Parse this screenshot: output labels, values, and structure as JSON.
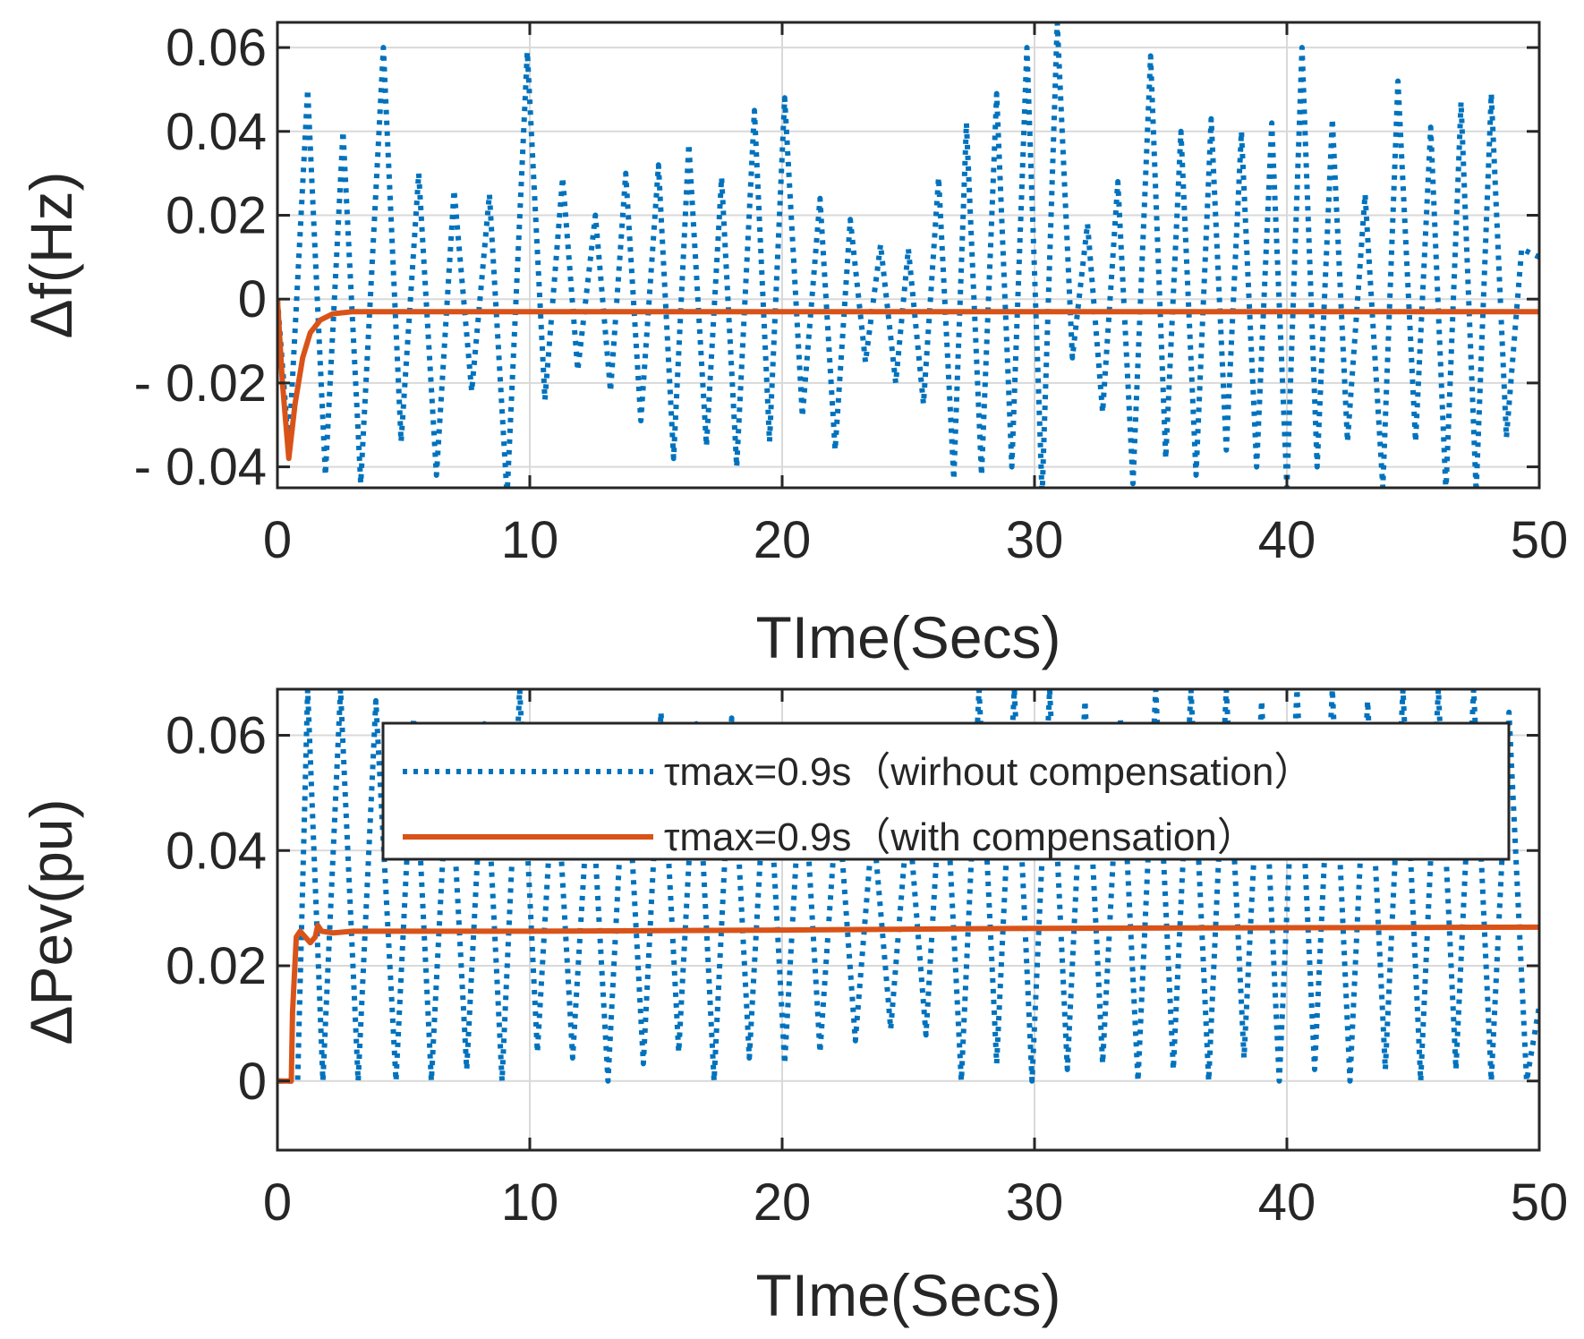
{
  "chart_data": [
    {
      "type": "line",
      "xlabel": "TIme(Secs)",
      "ylabel": "Δf(Hz)",
      "xlim": [
        0,
        50
      ],
      "ylim": [
        -0.045,
        0.066
      ],
      "xticks": [
        0,
        10,
        20,
        30,
        40,
        50
      ],
      "xtick_labels": [
        "0",
        "10",
        "20",
        "30",
        "40",
        "50"
      ],
      "yticks": [
        -0.04,
        -0.02,
        0,
        0.02,
        0.04,
        0.06
      ],
      "ytick_labels": [
        "- 0.04",
        "- 0.02",
        "0",
        "0.02",
        "0.04",
        "0.06"
      ],
      "grid": true,
      "series": [
        {
          "name": "τmax=0.9s（wirhout compensation）",
          "style": "dotted",
          "color": "#0072bd",
          "x": [
            0,
            0.45,
            1.2,
            1.9,
            2.6,
            3.3,
            4.2,
            4.9,
            5.6,
            6.3,
            7.0,
            7.7,
            8.4,
            9.1,
            9.9,
            10.6,
            11.3,
            11.9,
            12.6,
            13.2,
            13.8,
            14.4,
            15.1,
            15.7,
            16.3,
            17.0,
            17.6,
            18.2,
            18.9,
            19.5,
            20.1,
            20.8,
            21.5,
            22.1,
            22.7,
            23.3,
            23.9,
            24.5,
            25.0,
            25.6,
            26.2,
            26.8,
            27.3,
            27.9,
            28.5,
            29.1,
            29.7,
            30.3,
            30.9,
            31.5,
            32.1,
            32.7,
            33.3,
            33.9,
            34.6,
            35.2,
            35.8,
            36.4,
            37.0,
            37.6,
            38.2,
            38.8,
            39.4,
            40.0,
            40.6,
            41.2,
            41.8,
            42.4,
            43.1,
            43.8,
            44.4,
            45.1,
            45.7,
            46.3,
            46.9,
            47.5,
            48.1,
            48.7,
            49.3,
            50.0
          ],
          "values": [
            0,
            -0.036,
            0.05,
            -0.042,
            0.04,
            -0.044,
            0.06,
            -0.034,
            0.03,
            -0.042,
            0.026,
            -0.022,
            0.025,
            -0.047,
            0.059,
            -0.024,
            0.029,
            -0.017,
            0.02,
            -0.022,
            0.03,
            -0.029,
            0.032,
            -0.038,
            0.037,
            -0.035,
            0.029,
            -0.04,
            0.045,
            -0.034,
            0.048,
            -0.028,
            0.024,
            -0.036,
            0.019,
            -0.015,
            0.013,
            -0.02,
            0.012,
            -0.025,
            0.029,
            -0.043,
            0.042,
            -0.042,
            0.049,
            -0.04,
            0.06,
            -0.047,
            0.066,
            -0.014,
            0.018,
            -0.027,
            0.028,
            -0.044,
            0.058,
            -0.038,
            0.04,
            -0.042,
            0.043,
            -0.036,
            0.04,
            -0.04,
            0.042,
            -0.045,
            0.06,
            -0.04,
            0.043,
            -0.034,
            0.025,
            -0.045,
            0.052,
            -0.034,
            0.041,
            -0.046,
            0.047,
            -0.046,
            0.049,
            -0.033,
            0.012,
            0.01
          ]
        },
        {
          "name": "τmax=0.9s（with compensation）",
          "style": "solid",
          "color": "#d95319",
          "x": [
            0,
            0.2,
            0.45,
            0.7,
            1.0,
            1.3,
            1.7,
            2.2,
            3.0,
            5.0,
            10,
            20,
            30,
            40,
            50
          ],
          "values": [
            0,
            -0.02,
            -0.038,
            -0.025,
            -0.014,
            -0.008,
            -0.005,
            -0.0035,
            -0.003,
            -0.003,
            -0.003,
            -0.003,
            -0.003,
            -0.003,
            -0.003
          ]
        }
      ]
    },
    {
      "type": "line",
      "xlabel": "TIme(Secs)",
      "ylabel": "ΔPev(pu)",
      "xlim": [
        0,
        50
      ],
      "ylim": [
        -0.012,
        0.068
      ],
      "xticks": [
        0,
        10,
        20,
        30,
        40,
        50
      ],
      "xtick_labels": [
        "0",
        "10",
        "20",
        "30",
        "40",
        "50"
      ],
      "yticks": [
        0,
        0.02,
        0.04,
        0.06
      ],
      "ytick_labels": [
        "0",
        "0.02",
        "0.04",
        "0.06"
      ],
      "grid": true,
      "legend": {
        "location": "top-right",
        "entries": [
          "τmax=0.9s（wirhout compensation）",
          "τmax=0.9s（with compensation）"
        ]
      },
      "series": [
        {
          "name": "τmax=0.9s（wirhout compensation）",
          "style": "dotted",
          "color": "#0072bd",
          "x": [
            0,
            0.8,
            1.2,
            1.8,
            2.5,
            3.2,
            3.9,
            4.7,
            5.4,
            6.1,
            6.8,
            7.5,
            8.2,
            8.9,
            9.6,
            10.3,
            11.0,
            11.7,
            12.4,
            13.1,
            13.8,
            14.5,
            15.2,
            15.9,
            16.6,
            17.3,
            18.0,
            18.7,
            19.4,
            20.1,
            20.8,
            21.5,
            22.2,
            22.9,
            23.6,
            24.3,
            25.0,
            25.7,
            26.4,
            27.1,
            27.8,
            28.5,
            29.2,
            29.9,
            30.6,
            31.3,
            32.0,
            32.7,
            33.4,
            34.1,
            34.8,
            35.5,
            36.2,
            36.9,
            37.6,
            38.3,
            39.0,
            39.7,
            40.4,
            41.1,
            41.8,
            42.5,
            43.2,
            43.9,
            44.6,
            45.3,
            46.0,
            46.7,
            47.4,
            48.1,
            48.8,
            49.5,
            50.0
          ],
          "values": [
            0,
            0,
            0.068,
            0,
            0.068,
            0,
            0.066,
            0,
            0.063,
            0,
            0.06,
            0.002,
            0.062,
            0,
            0.068,
            0.005,
            0.058,
            0.004,
            0.055,
            0,
            0.06,
            0.003,
            0.064,
            0.005,
            0.062,
            0,
            0.063,
            0.004,
            0.06,
            0.003,
            0.058,
            0.005,
            0.05,
            0.007,
            0.045,
            0.009,
            0.047,
            0.008,
            0.06,
            0,
            0.068,
            0.003,
            0.068,
            0,
            0.068,
            0.002,
            0.066,
            0.003,
            0.063,
            0,
            0.068,
            0.002,
            0.068,
            0,
            0.068,
            0.004,
            0.066,
            0,
            0.068,
            0.002,
            0.068,
            0,
            0.066,
            0.002,
            0.068,
            0,
            0.068,
            0.002,
            0.068,
            0,
            0.064,
            0,
            0.013
          ]
        },
        {
          "name": "τmax=0.9s（with compensation）",
          "style": "solid",
          "color": "#d95319",
          "x": [
            0,
            0.55,
            0.6,
            0.75,
            0.9,
            1.1,
            1.3,
            1.5,
            1.6,
            1.75,
            2.2,
            3,
            5,
            10,
            20,
            30,
            40,
            50
          ],
          "values": [
            0,
            0,
            0.012,
            0.025,
            0.026,
            0.025,
            0.024,
            0.025,
            0.027,
            0.026,
            0.0257,
            0.026,
            0.026,
            0.026,
            0.0262,
            0.0265,
            0.0266,
            0.0267
          ]
        }
      ]
    }
  ]
}
